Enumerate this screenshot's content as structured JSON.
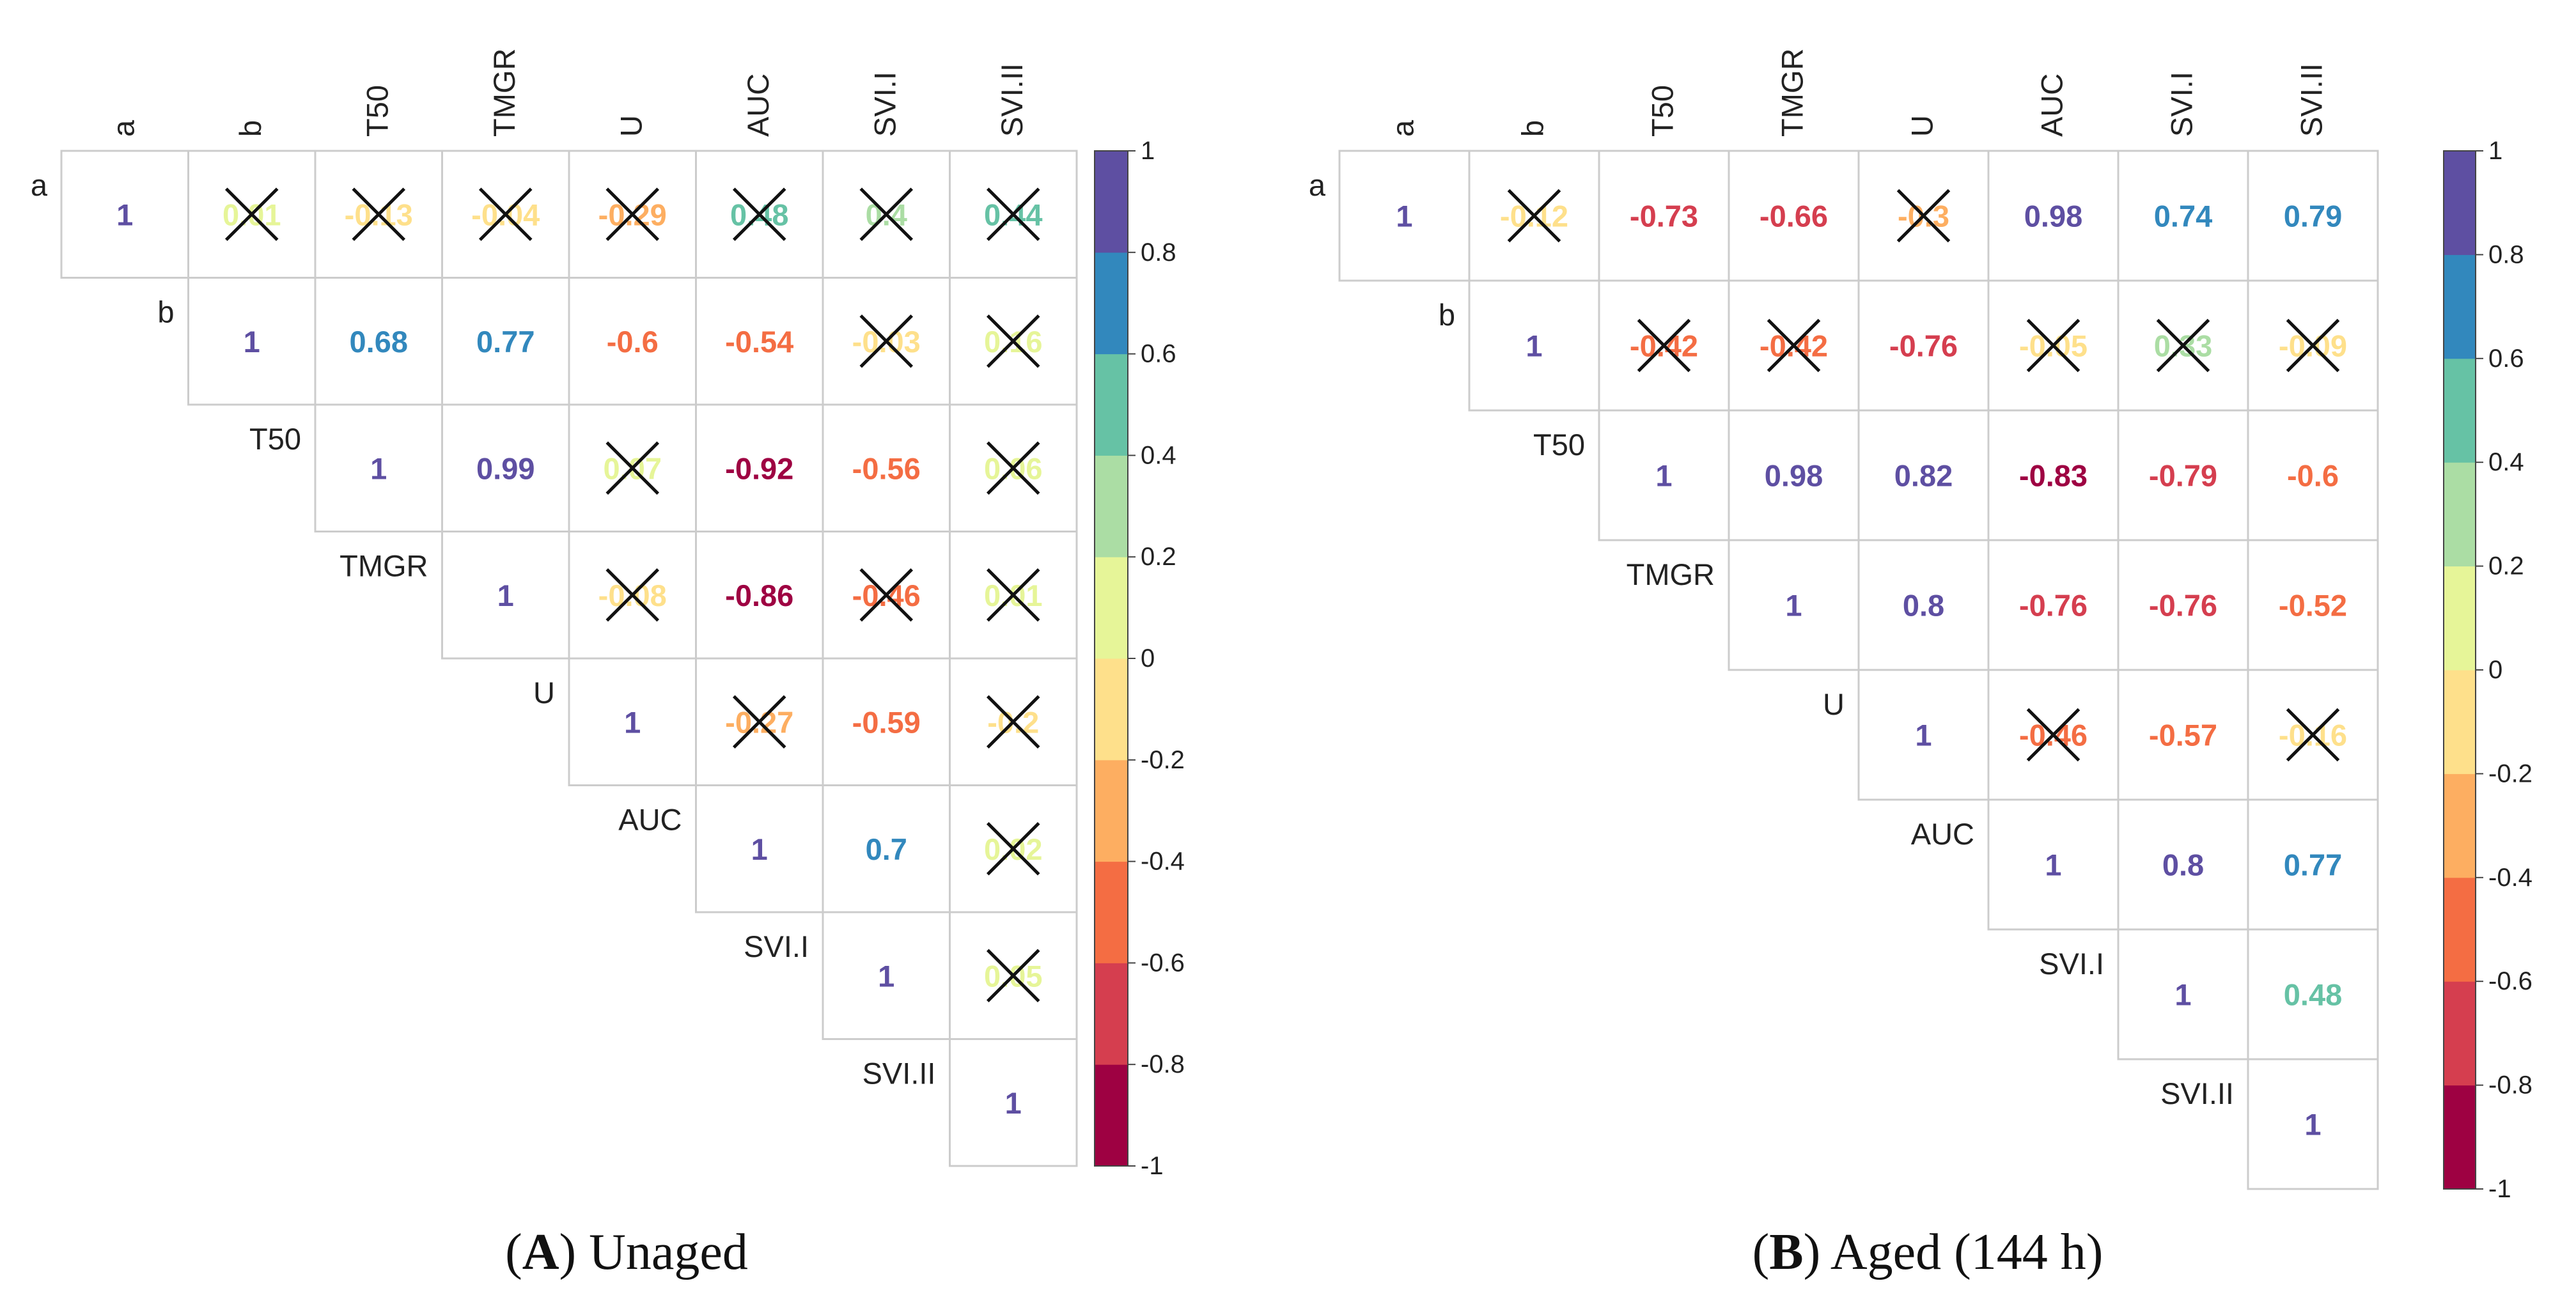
{
  "chart_data": [
    {
      "type": "heatmap",
      "panel_letter": "A",
      "caption": "Unaged",
      "variables": [
        "a",
        "b",
        "T50",
        "TMGR",
        "U",
        "AUC",
        "SVI.I",
        "SVI.II"
      ],
      "matrix": [
        [
          1,
          0.01,
          -0.13,
          -0.04,
          -0.29,
          0.48,
          0.4,
          0.44
        ],
        [
          null,
          1,
          0.68,
          0.77,
          -0.6,
          -0.54,
          -0.03,
          0.16
        ],
        [
          null,
          null,
          1,
          0.99,
          0.07,
          -0.92,
          -0.56,
          0.06
        ],
        [
          null,
          null,
          null,
          1,
          -0.08,
          -0.86,
          -0.46,
          0.01
        ],
        [
          null,
          null,
          null,
          null,
          1,
          -0.27,
          -0.59,
          -0.2
        ],
        [
          null,
          null,
          null,
          null,
          null,
          1,
          0.7,
          0.02
        ],
        [
          null,
          null,
          null,
          null,
          null,
          null,
          1,
          0.05
        ],
        [
          null,
          null,
          null,
          null,
          null,
          null,
          null,
          1
        ]
      ],
      "labels": [
        [
          "1",
          "0.01",
          "-0.13",
          "-0.04",
          "-0.29",
          "0.48",
          "0.4",
          "0.44"
        ],
        [
          null,
          "1",
          "0.68",
          "0.77",
          "-0.6",
          "-0.54",
          "-0.03",
          "0.16"
        ],
        [
          null,
          null,
          "1",
          "0.99",
          "0.07",
          "-0.92",
          "-0.56",
          "0.06"
        ],
        [
          null,
          null,
          null,
          "1",
          "-0.08",
          "-0.86",
          "-0.46",
          "0.01"
        ],
        [
          null,
          null,
          null,
          null,
          "1",
          "-0.27",
          "-0.59",
          "-0.2"
        ],
        [
          null,
          null,
          null,
          null,
          null,
          "1",
          "0.7",
          "0.02"
        ],
        [
          null,
          null,
          null,
          null,
          null,
          null,
          "1",
          "0.05"
        ],
        [
          null,
          null,
          null,
          null,
          null,
          null,
          null,
          "1"
        ]
      ],
      "insignificant": [
        [
          false,
          true,
          true,
          true,
          true,
          true,
          true,
          true
        ],
        [
          null,
          false,
          false,
          false,
          false,
          false,
          true,
          true
        ],
        [
          null,
          null,
          false,
          false,
          true,
          false,
          false,
          true
        ],
        [
          null,
          null,
          null,
          false,
          true,
          false,
          true,
          true
        ],
        [
          null,
          null,
          null,
          null,
          false,
          true,
          false,
          true
        ],
        [
          null,
          null,
          null,
          null,
          null,
          false,
          false,
          true
        ],
        [
          null,
          null,
          null,
          null,
          null,
          null,
          false,
          true
        ],
        [
          null,
          null,
          null,
          null,
          null,
          null,
          null,
          false
        ]
      ],
      "colorbar": {
        "range": [
          -1,
          1
        ],
        "ticks": [
          "1",
          "0.8",
          "0.6",
          "0.4",
          "0.2",
          "0",
          "-0.2",
          "-0.4",
          "-0.6",
          "-0.8",
          "-1"
        ]
      }
    },
    {
      "type": "heatmap",
      "panel_letter": "B",
      "caption": "Aged (144 h)",
      "variables": [
        "a",
        "b",
        "T50",
        "TMGR",
        "U",
        "AUC",
        "SVI.I",
        "SVI.II"
      ],
      "matrix": [
        [
          1,
          -0.12,
          -0.73,
          -0.66,
          -0.3,
          0.98,
          0.74,
          0.79
        ],
        [
          null,
          1,
          -0.42,
          -0.42,
          -0.76,
          -0.05,
          0.33,
          -0.09
        ],
        [
          null,
          null,
          1,
          0.98,
          0.82,
          -0.83,
          -0.79,
          -0.6
        ],
        [
          null,
          null,
          null,
          1,
          0.8,
          -0.76,
          -0.76,
          -0.52
        ],
        [
          null,
          null,
          null,
          null,
          1,
          -0.46,
          -0.57,
          -0.16
        ],
        [
          null,
          null,
          null,
          null,
          null,
          1,
          0.8,
          0.77
        ],
        [
          null,
          null,
          null,
          null,
          null,
          null,
          1,
          0.48
        ],
        [
          null,
          null,
          null,
          null,
          null,
          null,
          null,
          1
        ]
      ],
      "labels": [
        [
          "1",
          "-0.12",
          "-0.73",
          "-0.66",
          "-0.3",
          "0.98",
          "0.74",
          "0.79"
        ],
        [
          null,
          "1",
          "-0.42",
          "-0.42",
          "-0.76",
          "-0.05",
          "0.33",
          "-0.09"
        ],
        [
          null,
          null,
          "1",
          "0.98",
          "0.82",
          "-0.83",
          "-0.79",
          "-0.6"
        ],
        [
          null,
          null,
          null,
          "1",
          "0.8",
          "-0.76",
          "-0.76",
          "-0.52"
        ],
        [
          null,
          null,
          null,
          null,
          "1",
          "-0.46",
          "-0.57",
          "-0.16"
        ],
        [
          null,
          null,
          null,
          null,
          null,
          "1",
          "0.8",
          "0.77"
        ],
        [
          null,
          null,
          null,
          null,
          null,
          null,
          "1",
          "0.48"
        ],
        [
          null,
          null,
          null,
          null,
          null,
          null,
          null,
          "1"
        ]
      ],
      "insignificant": [
        [
          false,
          true,
          false,
          false,
          true,
          false,
          false,
          false
        ],
        [
          null,
          false,
          true,
          true,
          false,
          true,
          true,
          true
        ],
        [
          null,
          null,
          false,
          false,
          false,
          false,
          false,
          false
        ],
        [
          null,
          null,
          null,
          false,
          false,
          false,
          false,
          false
        ],
        [
          null,
          null,
          null,
          null,
          false,
          true,
          false,
          true
        ],
        [
          null,
          null,
          null,
          null,
          null,
          false,
          false,
          false
        ],
        [
          null,
          null,
          null,
          null,
          null,
          null,
          false,
          false
        ],
        [
          null,
          null,
          null,
          null,
          null,
          null,
          null,
          false
        ]
      ],
      "colorbar": {
        "range": [
          -1,
          1
        ],
        "ticks": [
          "1",
          "0.8",
          "0.6",
          "0.4",
          "0.2",
          "0",
          "-0.2",
          "-0.4",
          "-0.6",
          "-0.8",
          "-1"
        ]
      }
    }
  ],
  "palette": {
    "bins_low_to_high": [
      "#9e0142",
      "#d53e4f",
      "#f46d43",
      "#fdae61",
      "#fee08b",
      "#e6f598",
      "#abdda4",
      "#66c2a5",
      "#3288bd",
      "#5e4fa2"
    ],
    "grid": "#cccccc",
    "text": "#222222",
    "cross": "#111111"
  }
}
